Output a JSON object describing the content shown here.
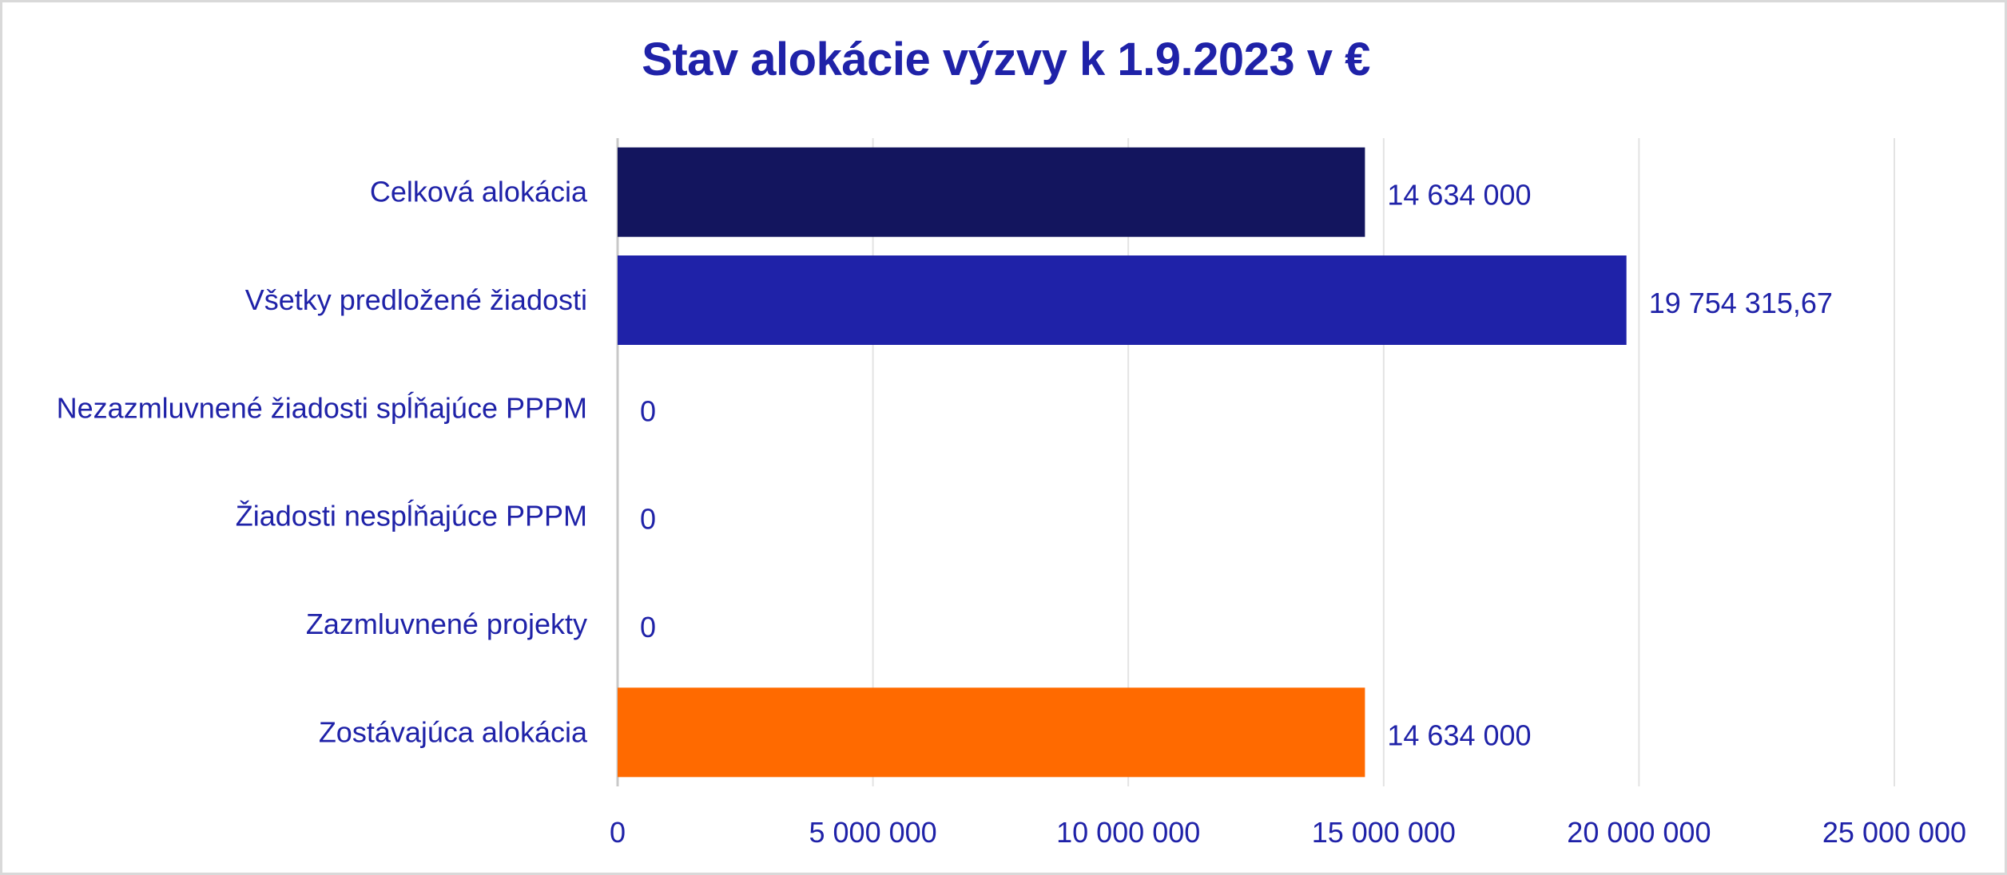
{
  "chart_data": {
    "type": "bar",
    "orientation": "horizontal",
    "title": "Stav alokácie výzvy k 1.9.2023 v €",
    "categories": [
      "Celková alokácia",
      "Všetky predložené žiadosti",
      "Nezazmluvnené žiadosti spĺňajúce PPPM",
      "Žiadosti nespĺňajúce PPPM",
      "Zazmluvnené projekty",
      "Zostávajúca alokácia"
    ],
    "values": [
      14634000,
      19754315.67,
      0,
      0,
      0,
      14634000
    ],
    "value_labels": [
      "14 634 000",
      "19 754 315,67",
      "0",
      "0",
      "0",
      "14 634 000"
    ],
    "colors": [
      "#13155e",
      "#1f22a8",
      "#1f22a8",
      "#1f22a8",
      "#1f22a8",
      "#ff6a00"
    ],
    "xlim": [
      0,
      25000000
    ],
    "xticks": [
      0,
      5000000,
      10000000,
      15000000,
      20000000,
      25000000
    ],
    "xtick_labels": [
      "0",
      "5 000 000",
      "10 000 000",
      "15 000 000",
      "20 000 000",
      "25 000 000"
    ],
    "grid": "vertical",
    "legend": "none",
    "xlabel": "",
    "ylabel": ""
  }
}
